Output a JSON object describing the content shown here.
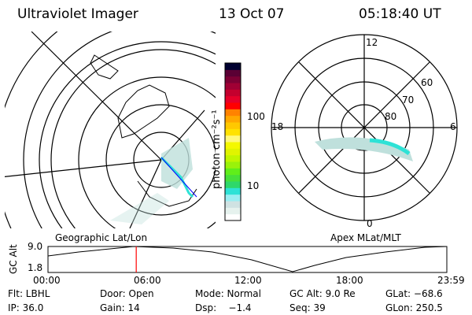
{
  "header": {
    "title": "Ultraviolet Imager",
    "date": "13 Oct 07",
    "time": "05:18:40 UT"
  },
  "colorbar": {
    "label": "photon cm⁻²s⁻¹",
    "ticks": [
      "100",
      "10"
    ],
    "colors": [
      "#ffffff",
      "#e6f2ee",
      "#cfe2e2",
      "#9aeef2",
      "#2ee2d6",
      "#2ed86a",
      "#46e03a",
      "#60ee1a",
      "#9af20a",
      "#c0f600",
      "#e0f400",
      "#f4f800",
      "#fff87a",
      "#ffe200",
      "#ffc800",
      "#ffa800",
      "#ff8200",
      "#ff0000",
      "#e6002a",
      "#c4002e",
      "#a00034",
      "#7c0034",
      "#5a0034",
      "#000030"
    ]
  },
  "left_map": {
    "label": "Geographic Lat/Lon"
  },
  "right_map": {
    "label": "Apex MLat/MLT",
    "mlt_labels": [
      "12",
      "18",
      "6",
      "0"
    ],
    "lat_labels": [
      "60",
      "70",
      "80"
    ]
  },
  "altitude_plot": {
    "ylabel": "GC Alt",
    "yticks": [
      "9.0",
      "1.8"
    ],
    "xticks": [
      "00:00",
      "06:00",
      "12:00",
      "18:00",
      "23:59"
    ],
    "current_time_hours": 5.31,
    "marker_color": "#ff0000"
  },
  "footer": {
    "row1": [
      "Flt: LBHL",
      "Door: Open",
      "Mode: Normal",
      "GC Alt: 9.0 Re",
      "GLat: −68.6"
    ],
    "row2": [
      "IP: 36.0",
      "Gain: 14",
      "Dsp:    −1.4",
      "Seq: 39",
      "GLon: 250.5"
    ]
  }
}
